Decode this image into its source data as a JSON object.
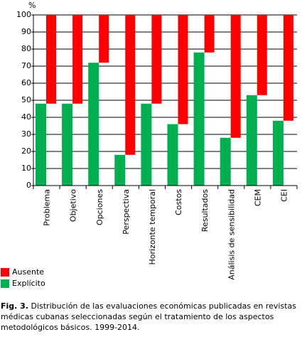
{
  "chart_data": {
    "type": "bar",
    "stacked": true,
    "y_label": "%",
    "categories": [
      "Problema",
      "Objetivo",
      "Opciones",
      "Perspectiva",
      "Horizonte temporal",
      "Costos",
      "Resultados",
      "Análisis de sensibilidad",
      "CEM",
      "CEI"
    ],
    "series": [
      {
        "name": "Ausente",
        "color": "#ff0000",
        "values": [
          52,
          52,
          28,
          82,
          52,
          64,
          22,
          72,
          47,
          62
        ]
      },
      {
        "name": "Explícito",
        "color": "#00b050",
        "values": [
          48,
          48,
          72,
          18,
          48,
          36,
          78,
          28,
          53,
          38
        ]
      }
    ],
    "ylim": [
      0,
      100
    ],
    "yticks": [
      0,
      10,
      20,
      30,
      40,
      50,
      60,
      70,
      80,
      90,
      100
    ],
    "grid": true,
    "legend": "bottom-left",
    "caption_label": "Fig. 3.",
    "caption": "Distribución de las evaluaciones económicas publicadas en revistas médicas cubanas seleccionadas según el tratamiento de los aspectos metodológicos básicos. 1999-2014."
  }
}
